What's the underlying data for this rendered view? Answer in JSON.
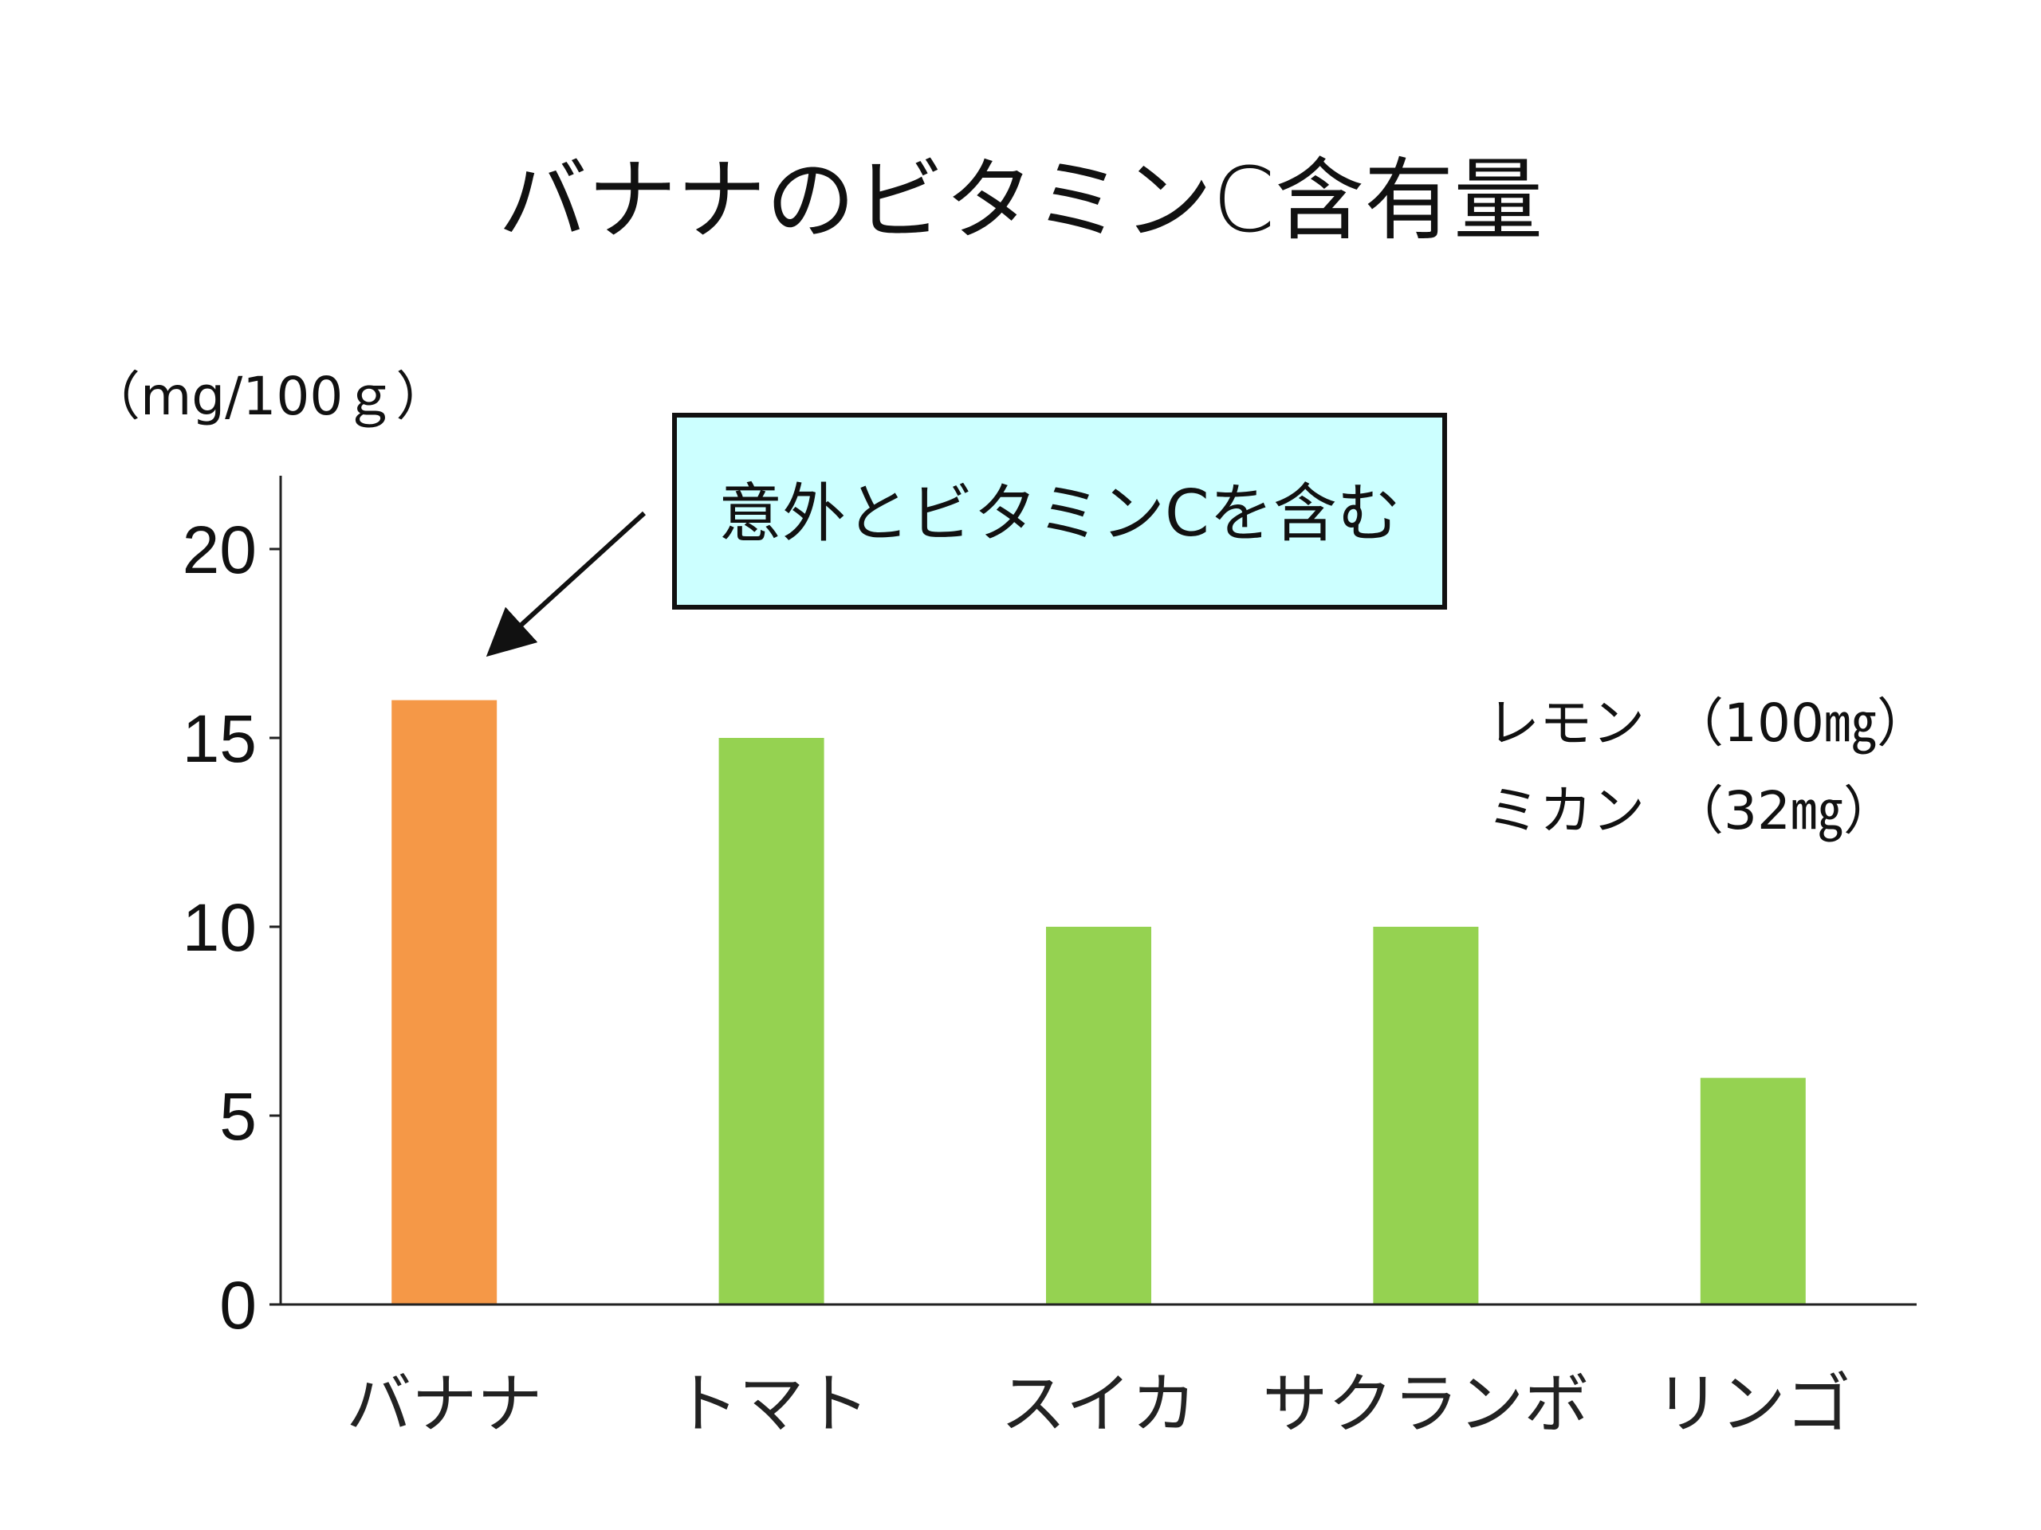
{
  "title": "バナナのビタミンC含有量",
  "unit_label": "（mg/100ｇ）",
  "callout": {
    "text": "意外とビタミンCを含む",
    "background": "#ccffff",
    "border": "#111111"
  },
  "notes": [
    "レモン　（100㎎）",
    "ミカン　（32㎎）"
  ],
  "colors": {
    "highlight": "#f59847",
    "bar": "#95d251",
    "axis": "#222222"
  },
  "chart_data": {
    "type": "bar",
    "title": "バナナのビタミンC含有量",
    "xlabel": "",
    "ylabel": "（mg/100ｇ）",
    "categories": [
      "バナナ",
      "トマト",
      "スイカ",
      "サクランボ",
      "リンゴ"
    ],
    "values": [
      16,
      15,
      10,
      10,
      6
    ],
    "highlight_index": 0,
    "ylim": [
      0,
      22
    ],
    "yticks": [
      0,
      5,
      10,
      15,
      20
    ],
    "grid": false,
    "legend": "none"
  }
}
